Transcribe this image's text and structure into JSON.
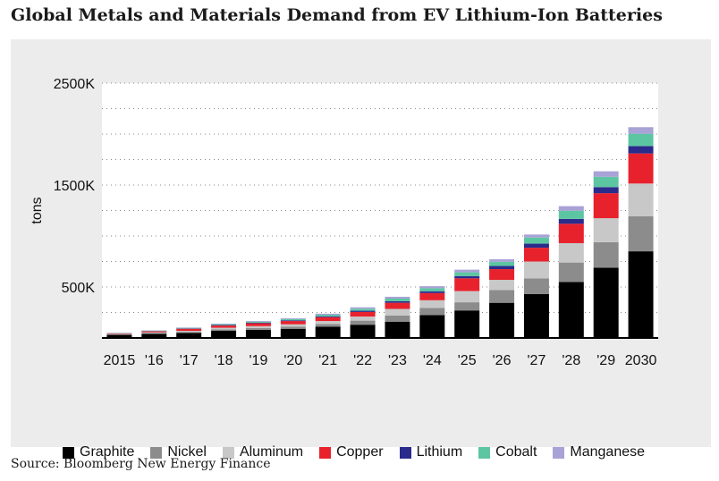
{
  "title": "Global Metals and Materials Demand from EV Lithium-Ion Batteries",
  "source": "Source: Bloomberg New Energy Finance",
  "chart_data": {
    "type": "bar",
    "stacked": true,
    "ylabel": "tons",
    "xlabel": "",
    "ylim": [
      0,
      2500000
    ],
    "y_ticks": [
      500000,
      1500000,
      2500000
    ],
    "y_tick_labels": [
      "500K",
      "1500K",
      "2500K"
    ],
    "grid": "horizontal dotted",
    "legend_position": "bottom",
    "categories": [
      "2015",
      "'16",
      "'17",
      "'18",
      "'19",
      "'20",
      "'21",
      "'22",
      "'23",
      "'24",
      "'25",
      "'26",
      "'27",
      "'28",
      "'29",
      "2030"
    ],
    "series": [
      {
        "name": "Graphite",
        "color": "#000000",
        "values": [
          30000,
          40000,
          50000,
          70000,
          80000,
          90000,
          110000,
          130000,
          160000,
          225000,
          270000,
          345000,
          430000,
          550000,
          690000,
          850000
        ]
      },
      {
        "name": "Nickel",
        "color": "#8c8c8c",
        "values": [
          5000,
          8000,
          10000,
          15000,
          18000,
          22000,
          28000,
          40000,
          60000,
          70000,
          80000,
          125000,
          155000,
          190000,
          250000,
          345000
        ]
      },
      {
        "name": "Aluminum",
        "color": "#c8c8c8",
        "values": [
          5000,
          7000,
          10000,
          15000,
          18000,
          22000,
          28000,
          40000,
          65000,
          75000,
          110000,
          100000,
          165000,
          190000,
          235000,
          320000
        ]
      },
      {
        "name": "Copper",
        "color": "#e8222d",
        "values": [
          5000,
          10000,
          20000,
          22000,
          28000,
          32000,
          38000,
          45000,
          60000,
          70000,
          125000,
          105000,
          135000,
          190000,
          245000,
          295000
        ]
      },
      {
        "name": "Lithium",
        "color": "#2b2b8c",
        "values": [
          2000,
          3000,
          4000,
          5000,
          6000,
          7000,
          9000,
          12000,
          15000,
          18000,
          22000,
          32000,
          40000,
          48000,
          60000,
          73000
        ]
      },
      {
        "name": "Cobalt",
        "color": "#5cc6a2",
        "values": [
          2000,
          4000,
          5000,
          8000,
          10000,
          12000,
          15000,
          20000,
          26000,
          30000,
          37000,
          40000,
          60000,
          80000,
          100000,
          120000
        ]
      },
      {
        "name": "Manganese",
        "color": "#a8a2d6",
        "values": [
          1000,
          3000,
          4000,
          5000,
          7000,
          8000,
          10000,
          14000,
          18000,
          20000,
          26000,
          25000,
          30000,
          45000,
          55000,
          65000
        ]
      }
    ]
  }
}
